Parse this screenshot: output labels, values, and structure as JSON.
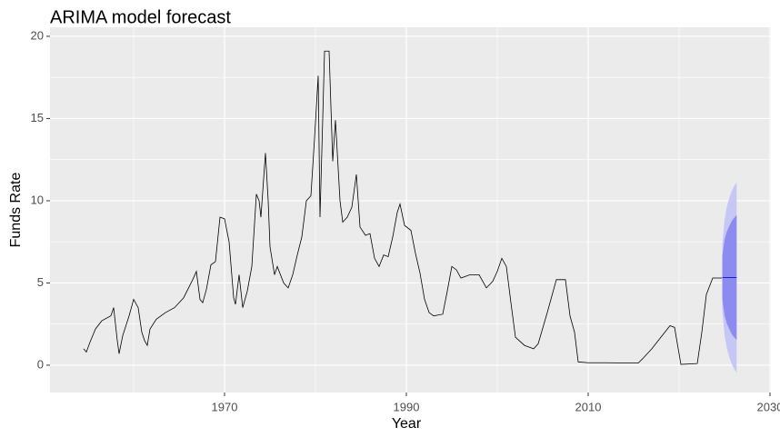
{
  "chart_data": {
    "type": "line",
    "title": "ARIMA model forecast",
    "x_label": "Year",
    "y_label": "Funds Rate",
    "xlim": [
      1950.8,
      2030.1
    ],
    "ylim": [
      -1.66,
      20.55
    ],
    "xticks": [
      1970,
      1990,
      2010,
      2030
    ],
    "yticks": [
      0,
      5,
      10,
      15,
      20
    ],
    "xminor": [
      1960,
      1980,
      2000,
      2020
    ],
    "yminor": [
      2.5,
      7.5,
      12.5,
      17.5
    ],
    "grid": true,
    "series": [
      {
        "color": "#000000",
        "x": [
          1954.5,
          1954.8,
          1955.2,
          1955.8,
          1956.5,
          1957.5,
          1957.8,
          1958.2,
          1958.4,
          1958.8,
          1959.5,
          1960.0,
          1960.5,
          1960.9,
          1961.2,
          1961.5,
          1961.8,
          1962.5,
          1963.5,
          1964.5,
          1965.5,
          1966.5,
          1966.9,
          1967.3,
          1967.6,
          1968.0,
          1968.5,
          1969.0,
          1969.5,
          1970.0,
          1970.5,
          1971.0,
          1971.2,
          1971.6,
          1972.0,
          1972.5,
          1973.0,
          1973.5,
          1973.8,
          1974.0,
          1974.5,
          1974.8,
          1975.0,
          1975.5,
          1975.8,
          1976.5,
          1977.0,
          1977.5,
          1978.0,
          1978.5,
          1979.0,
          1979.5,
          1979.9,
          1980.3,
          1980.5,
          1980.8,
          1981.0,
          1981.5,
          1981.9,
          1982.2,
          1982.7,
          1983.0,
          1983.5,
          1984.0,
          1984.5,
          1984.9,
          1985.5,
          1986.0,
          1986.5,
          1987.0,
          1987.5,
          1988.0,
          1988.5,
          1989.0,
          1989.3,
          1989.8,
          1990.5,
          1991.0,
          1991.5,
          1992.0,
          1992.5,
          1993.0,
          1994.0,
          1994.5,
          1995.0,
          1995.5,
          1996.0,
          1997.0,
          1998.0,
          1998.8,
          1999.5,
          2000.0,
          2000.5,
          2001.0,
          2001.5,
          2002.0,
          2003.0,
          2004.0,
          2004.5,
          2005.5,
          2006.5,
          2007.5,
          2008.0,
          2008.5,
          2008.9,
          2010.0,
          2012.0,
          2015.5,
          2016.0,
          2017.0,
          2018.0,
          2019.0,
          2019.5,
          2020.2,
          2022.0,
          2022.5,
          2023.0,
          2023.7,
          2024.7
        ],
        "values": [
          1.0,
          0.8,
          1.4,
          2.2,
          2.7,
          3.0,
          3.5,
          1.5,
          0.7,
          1.8,
          3.0,
          4.0,
          3.5,
          2.0,
          1.5,
          1.2,
          2.2,
          2.8,
          3.2,
          3.5,
          4.1,
          5.2,
          5.7,
          4.0,
          3.8,
          4.6,
          6.1,
          6.3,
          9.0,
          8.9,
          7.5,
          4.1,
          3.7,
          5.5,
          3.5,
          4.5,
          6.0,
          10.4,
          10.0,
          9.0,
          12.9,
          10.0,
          7.2,
          5.5,
          6.0,
          5.0,
          4.7,
          5.5,
          6.7,
          7.8,
          10.0,
          10.3,
          13.8,
          17.6,
          9.0,
          15.0,
          19.1,
          19.1,
          12.4,
          14.9,
          10.0,
          8.7,
          9.0,
          9.6,
          11.6,
          8.4,
          7.9,
          8.0,
          6.5,
          6.0,
          6.7,
          6.6,
          7.8,
          9.3,
          9.8,
          8.5,
          8.2,
          6.8,
          5.6,
          4.0,
          3.2,
          3.0,
          3.1,
          4.5,
          6.0,
          5.8,
          5.3,
          5.5,
          5.5,
          4.7,
          5.1,
          5.7,
          6.5,
          6.0,
          3.8,
          1.7,
          1.2,
          1.0,
          1.3,
          3.2,
          5.2,
          5.2,
          3.0,
          2.0,
          0.2,
          0.15,
          0.15,
          0.13,
          0.4,
          1.0,
          1.7,
          2.4,
          2.3,
          0.05,
          0.1,
          2.0,
          4.3,
          5.3,
          5.3
        ]
      }
    ],
    "forecast": {
      "x": [
        2024.75,
        2025.0,
        2025.25,
        2025.5,
        2025.75,
        2026.0,
        2026.33
      ],
      "mean": [
        5.33,
        5.33,
        5.33,
        5.33,
        5.33,
        5.33,
        5.33
      ],
      "mean_color": "#0000cc",
      "lo80": [
        4.03,
        3.03,
        2.53,
        2.23,
        1.93,
        1.73,
        1.53
      ],
      "hi80": [
        6.63,
        7.63,
        8.13,
        8.43,
        8.73,
        8.93,
        9.13
      ],
      "color80": "#8b8bf0",
      "lo95": [
        3.33,
        1.83,
        1.03,
        0.53,
        0.13,
        -0.17,
        -0.47
      ],
      "hi95": [
        7.33,
        8.83,
        9.63,
        10.13,
        10.53,
        10.83,
        11.13
      ],
      "color95": "#c7c7f5"
    }
  }
}
